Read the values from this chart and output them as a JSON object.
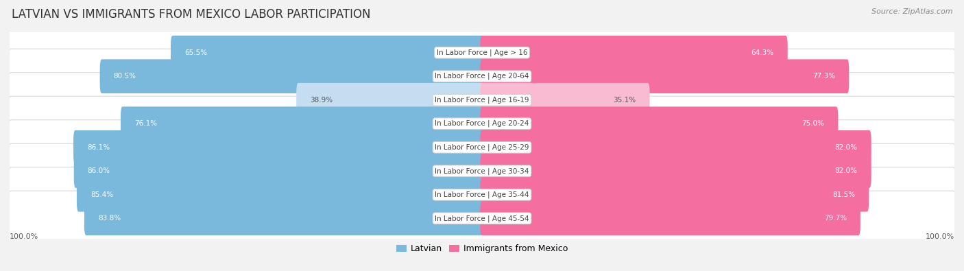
{
  "title": "LATVIAN VS IMMIGRANTS FROM MEXICO LABOR PARTICIPATION",
  "source": "Source: ZipAtlas.com",
  "categories": [
    "In Labor Force | Age > 16",
    "In Labor Force | Age 20-64",
    "In Labor Force | Age 16-19",
    "In Labor Force | Age 20-24",
    "In Labor Force | Age 25-29",
    "In Labor Force | Age 30-34",
    "In Labor Force | Age 35-44",
    "In Labor Force | Age 45-54"
  ],
  "latvian_values": [
    65.5,
    80.5,
    38.9,
    76.1,
    86.1,
    86.0,
    85.4,
    83.8
  ],
  "mexico_values": [
    64.3,
    77.3,
    35.1,
    75.0,
    82.0,
    82.0,
    81.5,
    79.7
  ],
  "latvian_color": "#7ab8dc",
  "latvian_color_light": "#c5ddf0",
  "mexico_color": "#f46fa0",
  "mexico_color_light": "#f9bbd2",
  "background_color": "#f2f2f2",
  "title_fontsize": 12,
  "label_fontsize": 7.5,
  "value_fontsize": 7.5,
  "legend_fontsize": 9,
  "max_value": 100.0,
  "figsize": [
    14.06,
    3.95
  ],
  "dpi": 100
}
